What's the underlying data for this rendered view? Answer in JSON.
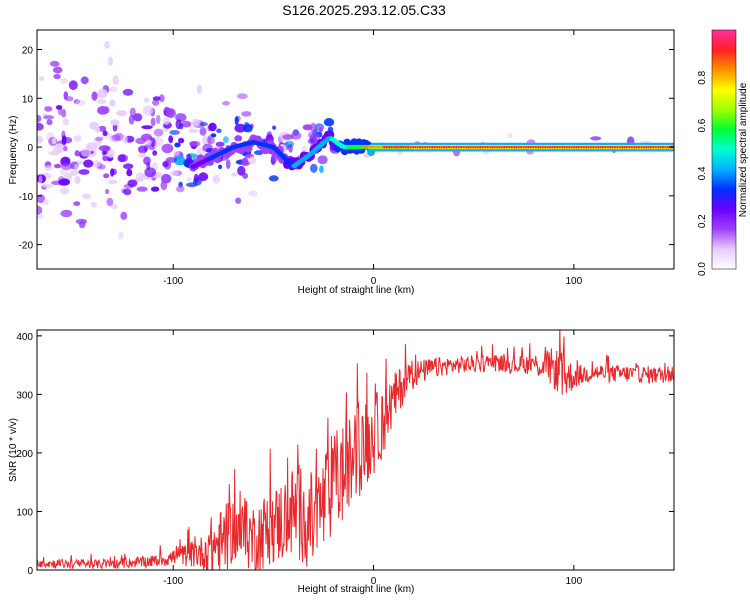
{
  "title": "S126.2025.293.12.05.C33",
  "colors": {
    "snr_line": "#e8292b",
    "spectrogram_strong": "#ff1a1a",
    "spectrogram_mid": "#00ddff",
    "spectrogram_weak": "#6a00ff",
    "spectrogram_faint": "#d9c4ff"
  },
  "chart_data": [
    {
      "type": "heatmap",
      "name": "spectrogram",
      "xlabel": "Height of straight line (km)",
      "ylabel": "Frequency (Hz)",
      "xlim": [
        -168,
        150
      ],
      "ylim": [
        -25,
        24
      ],
      "x_ticks": [
        -100,
        0,
        100
      ],
      "x_tick_labels": [
        "-100",
        "0",
        "100"
      ],
      "y_ticks": [
        20,
        10,
        0,
        -10,
        -20
      ],
      "y_tick_labels": [
        "20",
        "10",
        "0",
        "-10",
        "-20"
      ],
      "colorbar": {
        "label": "Normalized spectral amplitude",
        "range": [
          0,
          1
        ],
        "ticks": [
          0.0,
          0.2,
          0.4,
          0.6,
          0.8
        ],
        "tick_labels": [
          "0.0",
          "0.2",
          "0.4",
          "0.6",
          "0.8"
        ],
        "colormap": [
          "#ffffff",
          "#e6ccff",
          "#a040ff",
          "#6a00ff",
          "#0030ff",
          "#00b0ff",
          "#00ffd0",
          "#00ff30",
          "#a0ff00",
          "#ffff00",
          "#ff9000",
          "#ff2020",
          "#ff30a0"
        ]
      },
      "ridge": {
        "description_points_x": [
          -90,
          -80,
          -70,
          -60,
          -50,
          -40,
          -30,
          -22,
          -15,
          -10,
          -5,
          0,
          20,
          60,
          100,
          150
        ],
        "description_points_freq": [
          -4,
          -2,
          0,
          1,
          0,
          -4,
          -1,
          2,
          0,
          0,
          0,
          0,
          0,
          0,
          0,
          0
        ],
        "description_points_amp": [
          0.35,
          0.4,
          0.45,
          0.45,
          0.4,
          0.5,
          0.55,
          0.6,
          0.7,
          0.75,
          0.8,
          0.85,
          0.95,
          0.95,
          0.95,
          0.95
        ]
      }
    },
    {
      "type": "line",
      "name": "snr",
      "xlabel": "Height of straight line (km)",
      "ylabel": "SNR (10 * v/v)",
      "xlim": [
        -168,
        150
      ],
      "ylim": [
        0,
        410
      ],
      "x_ticks": [
        -100,
        0,
        100
      ],
      "x_tick_labels": [
        "-100",
        "0",
        "100"
      ],
      "y_ticks": [
        0,
        100,
        200,
        300,
        400
      ],
      "y_tick_labels": [
        "0",
        "100",
        "200",
        "300",
        "400"
      ],
      "series": [
        {
          "name": "SNR",
          "x": [
            -168,
            -150,
            -130,
            -110,
            -95,
            -85,
            -80,
            -75,
            -70,
            -65,
            -60,
            -55,
            -50,
            -45,
            -40,
            -35,
            -30,
            -25,
            -20,
            -15,
            -10,
            -5,
            0,
            5,
            10,
            15,
            20,
            25,
            30,
            40,
            50,
            60,
            70,
            80,
            90,
            95,
            100,
            110,
            120,
            130,
            140,
            150
          ],
          "values": [
            12,
            10,
            10,
            15,
            25,
            30,
            40,
            45,
            70,
            60,
            55,
            65,
            75,
            85,
            100,
            95,
            80,
            110,
            150,
            165,
            190,
            210,
            230,
            255,
            290,
            320,
            335,
            340,
            345,
            350,
            352,
            355,
            350,
            352,
            345,
            330,
            330,
            338,
            335,
            335,
            333,
            335
          ],
          "noise": [
            8,
            8,
            8,
            10,
            18,
            30,
            60,
            60,
            55,
            55,
            60,
            65,
            65,
            75,
            80,
            90,
            85,
            90,
            90,
            90,
            80,
            75,
            70,
            60,
            45,
            35,
            25,
            20,
            18,
            15,
            15,
            15,
            15,
            18,
            35,
            45,
            20,
            15,
            15,
            15,
            15,
            15
          ]
        }
      ]
    }
  ]
}
